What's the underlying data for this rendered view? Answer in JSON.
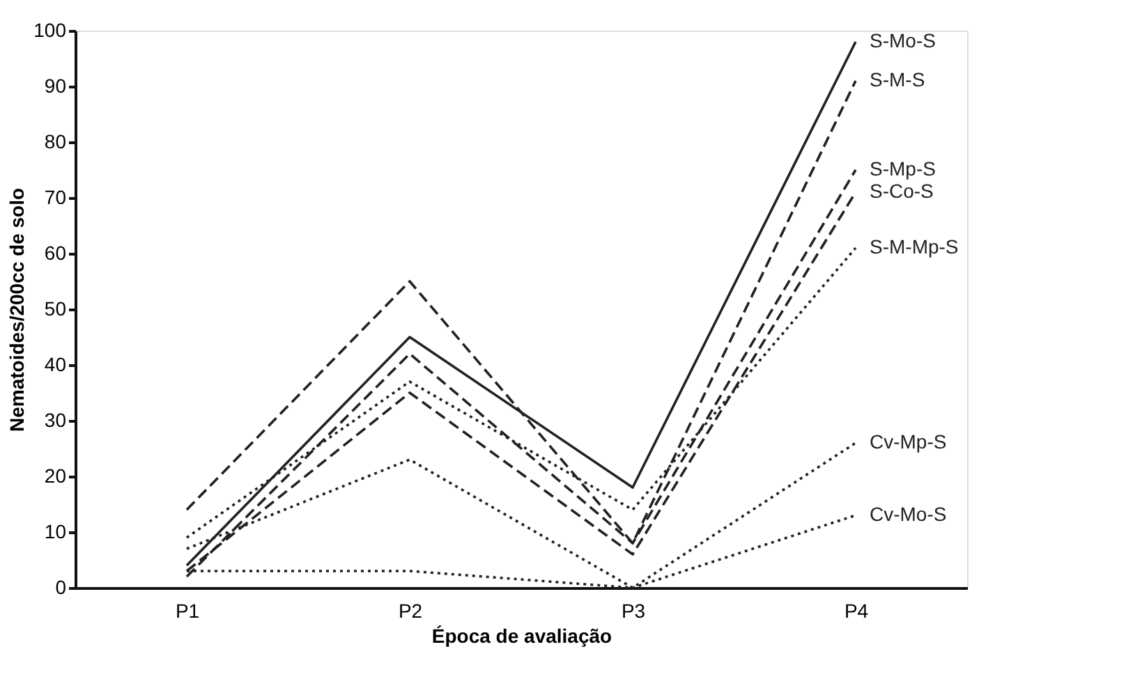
{
  "chart_data": {
    "type": "line",
    "xlabel": "Época de avaliação",
    "ylabel": "Nematoides/200cc de solo",
    "categories": [
      "P1",
      "P2",
      "P3",
      "P4"
    ],
    "ylim": [
      0,
      100
    ],
    "yticks": [
      0,
      10,
      20,
      30,
      40,
      50,
      60,
      70,
      80,
      90,
      100
    ],
    "grid": false,
    "legend": false,
    "marker": "none",
    "series": [
      {
        "name": "S-Mo-S",
        "color": "#222222",
        "line_style": "solid",
        "values": [
          4,
          45,
          18,
          98
        ]
      },
      {
        "name": "S-M-S",
        "color": "#222222",
        "line_style": "dashed",
        "values": [
          14,
          55,
          8,
          91
        ]
      },
      {
        "name": "S-Mp-S",
        "color": "#222222",
        "line_style": "dashed",
        "values": [
          2,
          42,
          8,
          75
        ]
      },
      {
        "name": "S-Co-S",
        "color": "#222222",
        "line_style": "dashed",
        "values": [
          3,
          35,
          6,
          71
        ]
      },
      {
        "name": "S-M-Mp-S",
        "color": "#222222",
        "line_style": "dotted",
        "values": [
          9,
          37,
          14,
          61
        ]
      },
      {
        "name": "Cv-Mp-S",
        "color": "#222222",
        "line_style": "dotted",
        "values": [
          7,
          23,
          0,
          26
        ]
      },
      {
        "name": "Cv-Mo-S",
        "color": "#222222",
        "line_style": "dotted",
        "values": [
          3,
          3,
          0,
          13
        ]
      }
    ]
  }
}
